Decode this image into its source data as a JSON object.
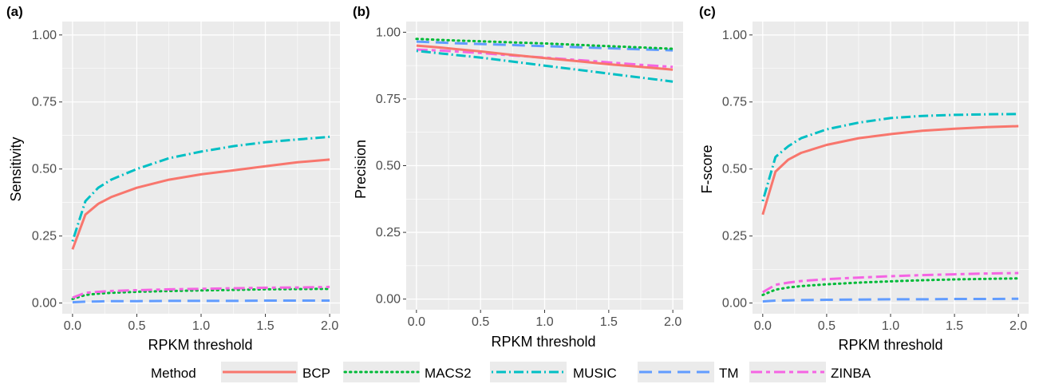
{
  "chart_data": [
    {
      "type": "line",
      "panel_label": "(a)",
      "xlabel": "RPKM threshold",
      "ylabel": "Sensitivity",
      "xlim": [
        -0.08,
        2.08
      ],
      "ylim": [
        -0.04,
        1.05
      ],
      "xticks": [
        0.0,
        0.5,
        1.0,
        1.5,
        2.0
      ],
      "xtick_labels": [
        "0.0",
        "0.5",
        "1.0",
        "1.5",
        "2.0"
      ],
      "yticks": [
        0.0,
        0.25,
        0.5,
        0.75,
        1.0
      ],
      "ytick_labels": [
        "0.00",
        "0.25",
        "0.50",
        "0.75",
        "1.00"
      ],
      "grid": true,
      "x": [
        0.0,
        0.1,
        0.2,
        0.3,
        0.5,
        0.75,
        1.0,
        1.25,
        1.5,
        1.75,
        2.0
      ],
      "series": [
        {
          "name": "BCP",
          "values": [
            0.2,
            0.33,
            0.37,
            0.395,
            0.43,
            0.46,
            0.48,
            0.495,
            0.51,
            0.525,
            0.535
          ]
        },
        {
          "name": "MACS2",
          "values": [
            0.015,
            0.03,
            0.035,
            0.038,
            0.042,
            0.045,
            0.047,
            0.049,
            0.051,
            0.052,
            0.053
          ]
        },
        {
          "name": "MUSIC",
          "values": [
            0.23,
            0.38,
            0.43,
            0.46,
            0.5,
            0.54,
            0.565,
            0.585,
            0.6,
            0.61,
            0.62
          ]
        },
        {
          "name": "TM",
          "values": [
            0.003,
            0.005,
            0.006,
            0.007,
            0.007,
            0.008,
            0.008,
            0.008,
            0.009,
            0.009,
            0.009
          ]
        },
        {
          "name": "ZINBA",
          "values": [
            0.02,
            0.038,
            0.042,
            0.045,
            0.048,
            0.051,
            0.053,
            0.055,
            0.057,
            0.058,
            0.06
          ]
        }
      ]
    },
    {
      "type": "line",
      "panel_label": "(b)",
      "xlabel": "RPKM threshold",
      "ylabel": "Precision",
      "xlim": [
        -0.08,
        2.08
      ],
      "ylim": [
        -0.04,
        1.04
      ],
      "xticks": [
        0.0,
        0.5,
        1.0,
        1.5,
        2.0
      ],
      "xtick_labels": [
        "0.0",
        "0.5",
        "1.0",
        "1.5",
        "2.0"
      ],
      "yticks": [
        0.0,
        0.25,
        0.5,
        0.75,
        1.0
      ],
      "ytick_labels": [
        "0.00",
        "0.25",
        "0.50",
        "0.75",
        "1.00"
      ],
      "grid": true,
      "x": [
        0.0,
        0.1,
        0.2,
        0.3,
        0.5,
        0.75,
        1.0,
        1.25,
        1.5,
        1.75,
        2.0
      ],
      "series": [
        {
          "name": "BCP",
          "values": [
            0.95,
            0.946,
            0.942,
            0.937,
            0.928,
            0.915,
            0.903,
            0.892,
            0.88,
            0.87,
            0.86
          ]
        },
        {
          "name": "MACS2",
          "values": [
            0.975,
            0.973,
            0.971,
            0.969,
            0.966,
            0.962,
            0.958,
            0.953,
            0.948,
            0.943,
            0.938
          ]
        },
        {
          "name": "MUSIC",
          "values": [
            0.93,
            0.925,
            0.92,
            0.915,
            0.905,
            0.89,
            0.875,
            0.86,
            0.845,
            0.83,
            0.815
          ]
        },
        {
          "name": "TM",
          "values": [
            0.965,
            0.963,
            0.961,
            0.959,
            0.956,
            0.952,
            0.948,
            0.944,
            0.94,
            0.936,
            0.932
          ]
        },
        {
          "name": "ZINBA",
          "values": [
            0.935,
            0.933,
            0.931,
            0.928,
            0.922,
            0.913,
            0.905,
            0.896,
            0.887,
            0.878,
            0.87
          ]
        }
      ]
    },
    {
      "type": "line",
      "panel_label": "(c)",
      "xlabel": "RPKM threshold",
      "ylabel": "F-score",
      "xlim": [
        -0.08,
        2.08
      ],
      "ylim": [
        -0.04,
        1.05
      ],
      "xticks": [
        0.0,
        0.5,
        1.0,
        1.5,
        2.0
      ],
      "xtick_labels": [
        "0.0",
        "0.5",
        "1.0",
        "1.5",
        "2.0"
      ],
      "yticks": [
        0.0,
        0.25,
        0.5,
        0.75,
        1.0
      ],
      "ytick_labels": [
        "0.00",
        "0.25",
        "0.50",
        "0.75",
        "1.00"
      ],
      "grid": true,
      "x": [
        0.0,
        0.1,
        0.2,
        0.3,
        0.5,
        0.75,
        1.0,
        1.25,
        1.5,
        1.75,
        2.0
      ],
      "series": [
        {
          "name": "BCP",
          "values": [
            0.33,
            0.49,
            0.535,
            0.56,
            0.59,
            0.615,
            0.63,
            0.643,
            0.65,
            0.656,
            0.66
          ]
        },
        {
          "name": "MACS2",
          "values": [
            0.03,
            0.05,
            0.058,
            0.063,
            0.07,
            0.076,
            0.081,
            0.085,
            0.088,
            0.09,
            0.092
          ]
        },
        {
          "name": "MUSIC",
          "values": [
            0.38,
            0.545,
            0.585,
            0.615,
            0.648,
            0.673,
            0.69,
            0.698,
            0.702,
            0.704,
            0.705
          ]
        },
        {
          "name": "TM",
          "values": [
            0.006,
            0.009,
            0.01,
            0.011,
            0.012,
            0.013,
            0.014,
            0.014,
            0.015,
            0.015,
            0.016
          ]
        },
        {
          "name": "ZINBA",
          "values": [
            0.04,
            0.068,
            0.076,
            0.082,
            0.089,
            0.095,
            0.1,
            0.104,
            0.107,
            0.11,
            0.112
          ]
        }
      ]
    }
  ],
  "legend": {
    "title": "Method",
    "position": "bottom",
    "items": [
      {
        "name": "BCP",
        "color": "#F8766D",
        "dash": "solid"
      },
      {
        "name": "MACS2",
        "color": "#00BA38",
        "dash": "dotted"
      },
      {
        "name": "MUSIC",
        "color": "#00BFC4",
        "dash": "dotdash"
      },
      {
        "name": "TM",
        "color": "#619CFF",
        "dash": "longdash"
      },
      {
        "name": "ZINBA",
        "color": "#F564E3",
        "dash": "twodash"
      }
    ]
  },
  "style": {
    "panel_background": "#EBEBEB",
    "grid_color": "#FFFFFF"
  }
}
